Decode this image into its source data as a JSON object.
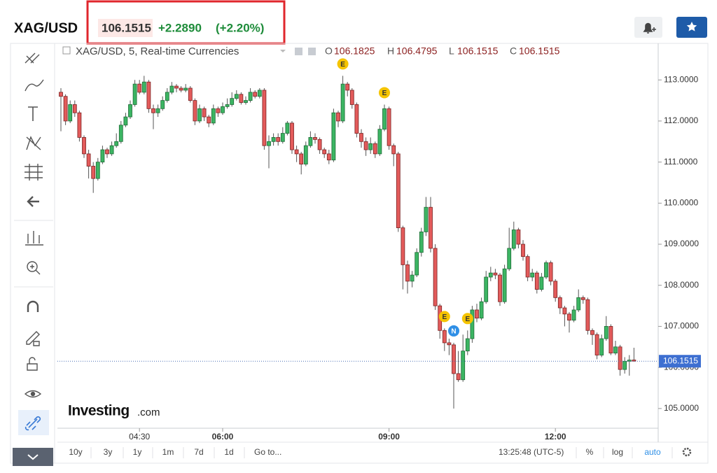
{
  "header": {
    "symbol": "XAG/USD",
    "change": "+2.2890",
    "change_percent": "(+2.20%)"
  },
  "legend": {
    "title": "XAG/USD, 5, Real-time Currencies",
    "open_label": "O",
    "high_label": "H",
    "low_label": "L",
    "close_label": "C"
  },
  "logo": {
    "name": "Investing",
    "suffix": ".com"
  },
  "toolbar": {
    "ranges": [
      "10y",
      "3y",
      "1y",
      "1m",
      "7d",
      "1d"
    ],
    "goto": "Go to...",
    "clock": "13:25:48 (UTC-5)",
    "percent": "%",
    "log": "log",
    "auto": "auto"
  },
  "chart_data": {
    "type": "candlestick",
    "x": [
      "03:05",
      "03:10",
      "03:15",
      "03:20",
      "03:25",
      "03:30",
      "03:35",
      "03:40",
      "03:45",
      "03:50",
      "03:55",
      "04:00",
      "04:05",
      "04:10",
      "04:15",
      "04:20",
      "04:25",
      "04:30",
      "04:35",
      "04:40",
      "04:45",
      "04:50",
      "04:55",
      "05:00",
      "05:05",
      "05:10",
      "05:15",
      "05:20",
      "05:25",
      "05:30",
      "05:35",
      "05:40",
      "05:45",
      "05:50",
      "05:55",
      "06:00",
      "06:05",
      "06:10",
      "06:15",
      "06:20",
      "06:25",
      "06:30",
      "06:35",
      "06:40",
      "06:45",
      "06:50",
      "06:55",
      "07:00",
      "07:05",
      "07:10",
      "07:15",
      "07:20",
      "07:25",
      "07:30",
      "07:35",
      "07:40",
      "07:45",
      "07:50",
      "07:55",
      "08:00",
      "08:05",
      "08:10",
      "08:15",
      "08:20",
      "08:25",
      "08:30",
      "08:35",
      "08:40",
      "08:45",
      "08:50",
      "08:55",
      "09:00",
      "09:05",
      "09:10",
      "09:15",
      "09:20",
      "09:25",
      "09:30",
      "09:35",
      "09:40",
      "09:45",
      "09:50",
      "09:55",
      "10:00",
      "10:05",
      "10:10",
      "10:15",
      "10:20",
      "10:25",
      "10:30",
      "10:35",
      "10:40",
      "10:45",
      "10:50",
      "10:55",
      "11:00",
      "11:05",
      "11:10",
      "11:15",
      "11:20",
      "11:25",
      "11:30",
      "11:35",
      "11:40",
      "11:45",
      "11:50",
      "11:55",
      "12:00",
      "12:05",
      "12:10",
      "12:15",
      "12:20",
      "12:25",
      "12:30",
      "12:35",
      "12:40",
      "12:45",
      "12:50",
      "12:55",
      "13:00",
      "13:05",
      "13:10",
      "13:15",
      "13:20",
      "13:25"
    ],
    "ohlc": [
      [
        112.7,
        112.8,
        111.75,
        112.6
      ],
      [
        112.6,
        112.65,
        111.9,
        112.0
      ],
      [
        112.0,
        112.5,
        111.95,
        112.4
      ],
      [
        112.4,
        112.5,
        112.1,
        112.2
      ],
      [
        112.2,
        112.25,
        111.5,
        111.6
      ],
      [
        111.6,
        111.65,
        111.1,
        111.2
      ],
      [
        111.2,
        111.3,
        110.6,
        110.9
      ],
      [
        110.9,
        111.0,
        110.25,
        110.6
      ],
      [
        110.6,
        111.1,
        110.55,
        111.0
      ],
      [
        111.0,
        111.4,
        110.95,
        111.3
      ],
      [
        111.3,
        111.35,
        111.1,
        111.2
      ],
      [
        111.2,
        111.5,
        111.15,
        111.4
      ],
      [
        111.4,
        111.7,
        111.35,
        111.5
      ],
      [
        111.5,
        112.0,
        111.45,
        111.9
      ],
      [
        111.9,
        112.2,
        111.85,
        112.1
      ],
      [
        112.1,
        112.5,
        112.05,
        112.4
      ],
      [
        112.4,
        113.0,
        112.35,
        112.9
      ],
      [
        112.9,
        113.0,
        112.65,
        112.7
      ],
      [
        112.7,
        113.1,
        112.65,
        112.95
      ],
      [
        112.95,
        113.0,
        112.2,
        112.3
      ],
      [
        112.3,
        112.4,
        111.8,
        112.2
      ],
      [
        112.2,
        112.4,
        112.1,
        112.3
      ],
      [
        112.3,
        112.6,
        112.25,
        112.5
      ],
      [
        112.5,
        112.8,
        112.45,
        112.7
      ],
      [
        112.7,
        112.95,
        112.65,
        112.85
      ],
      [
        112.85,
        112.9,
        112.7,
        112.8
      ],
      [
        112.8,
        112.85,
        112.7,
        112.75
      ],
      [
        112.75,
        112.9,
        112.7,
        112.8
      ],
      [
        112.8,
        112.85,
        112.45,
        112.5
      ],
      [
        112.5,
        112.55,
        111.9,
        112.0
      ],
      [
        112.0,
        112.4,
        111.95,
        112.3
      ],
      [
        112.3,
        112.35,
        112.0,
        112.1
      ],
      [
        112.1,
        112.15,
        111.85,
        111.95
      ],
      [
        111.95,
        112.4,
        111.9,
        112.3
      ],
      [
        112.3,
        112.35,
        112.1,
        112.2
      ],
      [
        112.2,
        112.45,
        112.15,
        112.35
      ],
      [
        112.35,
        112.55,
        112.3,
        112.4
      ],
      [
        112.4,
        112.7,
        112.35,
        112.55
      ],
      [
        112.55,
        112.75,
        112.5,
        112.65
      ],
      [
        112.65,
        112.7,
        112.4,
        112.45
      ],
      [
        112.45,
        112.6,
        112.4,
        112.5
      ],
      [
        112.5,
        112.8,
        112.45,
        112.7
      ],
      [
        112.7,
        112.75,
        112.55,
        112.6
      ],
      [
        112.6,
        112.8,
        112.55,
        112.75
      ],
      [
        112.75,
        112.8,
        111.3,
        111.4
      ],
      [
        111.4,
        111.65,
        110.85,
        111.5
      ],
      [
        111.5,
        111.7,
        111.4,
        111.6
      ],
      [
        111.6,
        111.7,
        111.4,
        111.5
      ],
      [
        111.5,
        111.85,
        111.45,
        111.7
      ],
      [
        111.7,
        112.0,
        111.65,
        111.95
      ],
      [
        111.95,
        112.0,
        111.2,
        111.3
      ],
      [
        111.3,
        111.4,
        111.0,
        111.2
      ],
      [
        111.2,
        111.25,
        110.7,
        110.95
      ],
      [
        110.95,
        111.5,
        110.9,
        111.4
      ],
      [
        111.4,
        111.75,
        111.35,
        111.6
      ],
      [
        111.6,
        111.7,
        111.45,
        111.55
      ],
      [
        111.55,
        111.6,
        111.2,
        111.3
      ],
      [
        111.3,
        111.35,
        111.1,
        111.2
      ],
      [
        111.2,
        111.3,
        110.95,
        111.05
      ],
      [
        111.05,
        112.3,
        111.0,
        112.2
      ],
      [
        112.2,
        112.25,
        111.85,
        112.0
      ],
      [
        112.0,
        113.1,
        111.95,
        112.9
      ],
      [
        112.9,
        112.95,
        112.6,
        112.75
      ],
      [
        112.75,
        112.8,
        112.3,
        112.4
      ],
      [
        112.4,
        112.45,
        111.6,
        111.7
      ],
      [
        111.7,
        111.8,
        111.35,
        111.5
      ],
      [
        111.5,
        111.6,
        111.15,
        111.3
      ],
      [
        111.3,
        111.6,
        111.2,
        111.45
      ],
      [
        111.45,
        111.5,
        111.1,
        111.2
      ],
      [
        111.2,
        111.9,
        111.15,
        111.8
      ],
      [
        111.8,
        112.4,
        111.75,
        112.3
      ],
      [
        112.3,
        112.35,
        111.3,
        111.4
      ],
      [
        111.4,
        111.45,
        110.9,
        111.2
      ],
      [
        111.2,
        111.25,
        109.3,
        109.4
      ],
      [
        109.4,
        109.45,
        107.9,
        108.5
      ],
      [
        108.5,
        108.6,
        107.8,
        108.1
      ],
      [
        108.1,
        108.35,
        107.95,
        108.25
      ],
      [
        108.25,
        108.9,
        108.2,
        108.8
      ],
      [
        108.8,
        109.4,
        108.7,
        109.3
      ],
      [
        109.3,
        110.15,
        109.2,
        109.9
      ],
      [
        109.9,
        110.15,
        108.8,
        108.9
      ],
      [
        108.9,
        109.0,
        107.4,
        107.5
      ],
      [
        107.5,
        107.55,
        106.7,
        106.9
      ],
      [
        106.9,
        106.95,
        106.4,
        106.6
      ],
      [
        106.6,
        106.7,
        106.3,
        106.55
      ],
      [
        106.55,
        106.6,
        105.0,
        105.85
      ],
      [
        105.85,
        106.4,
        105.65,
        105.7
      ],
      [
        105.7,
        106.8,
        105.65,
        106.4
      ],
      [
        106.4,
        106.9,
        106.3,
        106.7
      ],
      [
        106.7,
        107.5,
        106.6,
        107.4
      ],
      [
        107.4,
        107.55,
        107.1,
        107.2
      ],
      [
        107.2,
        107.7,
        107.15,
        107.6
      ],
      [
        107.6,
        108.35,
        107.55,
        108.2
      ],
      [
        108.2,
        108.45,
        108.1,
        108.3
      ],
      [
        108.3,
        108.4,
        108.15,
        108.25
      ],
      [
        108.25,
        108.3,
        107.5,
        107.6
      ],
      [
        107.6,
        108.5,
        107.55,
        108.4
      ],
      [
        108.4,
        109.4,
        108.35,
        108.9
      ],
      [
        108.9,
        109.55,
        108.85,
        109.35
      ],
      [
        109.35,
        109.4,
        108.9,
        109.0
      ],
      [
        109.0,
        109.1,
        108.6,
        108.7
      ],
      [
        108.7,
        108.75,
        108.1,
        108.2
      ],
      [
        108.2,
        108.4,
        108.1,
        108.3
      ],
      [
        108.3,
        108.35,
        107.8,
        107.9
      ],
      [
        107.9,
        108.3,
        107.85,
        108.2
      ],
      [
        108.2,
        108.6,
        108.15,
        108.55
      ],
      [
        108.55,
        108.6,
        108.0,
        108.1
      ],
      [
        108.1,
        108.15,
        107.6,
        107.7
      ],
      [
        107.7,
        107.75,
        107.3,
        107.45
      ],
      [
        107.45,
        107.5,
        107.0,
        107.3
      ],
      [
        107.3,
        107.35,
        106.85,
        107.15
      ],
      [
        107.15,
        107.5,
        107.1,
        107.4
      ],
      [
        107.4,
        107.9,
        107.35,
        107.7
      ],
      [
        107.7,
        107.75,
        107.55,
        107.65
      ],
      [
        107.65,
        107.7,
        106.8,
        106.9
      ],
      [
        106.9,
        106.95,
        106.55,
        106.8
      ],
      [
        106.8,
        106.85,
        106.2,
        106.3
      ],
      [
        106.3,
        106.8,
        106.25,
        106.7
      ],
      [
        106.7,
        107.25,
        106.65,
        107.0
      ],
      [
        107.0,
        107.05,
        106.3,
        106.35
      ],
      [
        106.35,
        106.65,
        106.3,
        106.5
      ],
      [
        106.5,
        106.55,
        105.8,
        105.95
      ],
      [
        105.95,
        106.25,
        105.85,
        106.15
      ],
      [
        106.15,
        106.3,
        105.8,
        106.18
      ],
      [
        106.1825,
        106.4795,
        106.1515,
        106.1515
      ]
    ],
    "xticks": [
      "04:30",
      "06:00",
      "09:00",
      "12:00"
    ],
    "ylim": [
      104.52,
      113.89
    ],
    "yticks": [
      {
        "value": 105,
        "label": "105.0000"
      },
      {
        "value": 106,
        "label": "106.0000"
      },
      {
        "value": 107,
        "label": "107.0000"
      },
      {
        "value": 108,
        "label": "108.0000"
      },
      {
        "value": 109,
        "label": "109.0000"
      },
      {
        "value": 110,
        "label": "110.0000"
      },
      {
        "value": 111,
        "label": "111.0000"
      },
      {
        "value": 112,
        "label": "112.0000"
      },
      {
        "value": 113,
        "label": "113.0000"
      }
    ],
    "up_color": "#3cb563",
    "down_color": "#e35b5b",
    "events": [
      {
        "label": "E",
        "x": "08:10",
        "color": "#f5c400"
      },
      {
        "label": "E",
        "x": "08:55",
        "color": "#f5c400"
      },
      {
        "label": "E",
        "x": "10:00",
        "color": "#f5c400"
      },
      {
        "label": "N",
        "x": "10:10",
        "color": "#2f8fe6"
      },
      {
        "label": "E",
        "x": "10:25",
        "color": "#f5c400"
      }
    ]
  }
}
